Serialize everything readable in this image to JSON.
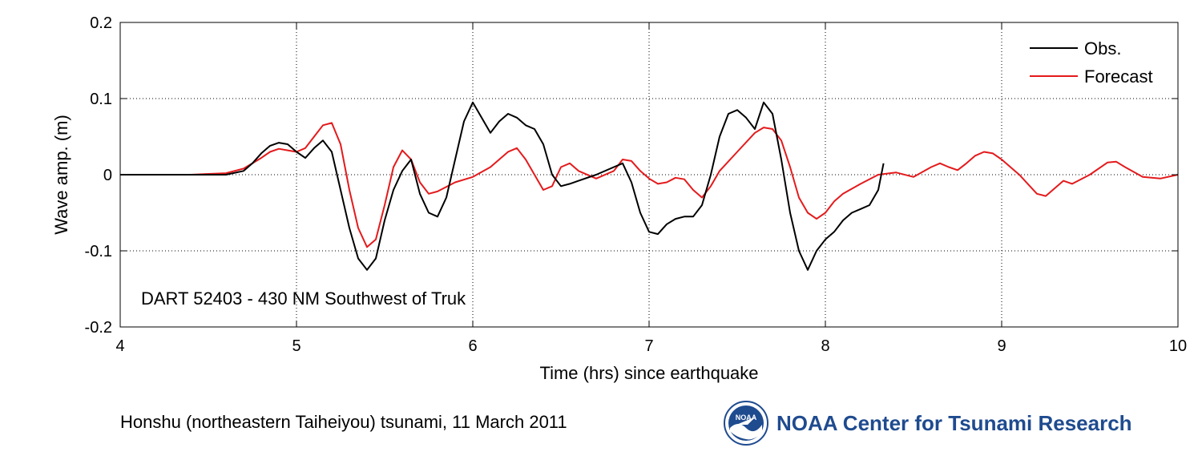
{
  "caption": "Honshu (northeastern Taiheiyou) tsunami, 11 March 2011",
  "org": {
    "name": "NOAA Center for Tsunami Research",
    "logo_text": "NOAA",
    "logo_icon": "noaa-logo-icon",
    "logo_color": "#1f4b8f"
  },
  "chart_data": {
    "type": "line",
    "xlabel": "Time (hrs) since earthquake",
    "ylabel": "Wave amp. (m)",
    "xlim": [
      4,
      10
    ],
    "ylim": [
      -0.2,
      0.2
    ],
    "xticks": [
      4,
      5,
      6,
      7,
      8,
      9,
      10
    ],
    "yticks": [
      -0.2,
      -0.1,
      0,
      0.1,
      0.2
    ],
    "xtick_labels": [
      "4",
      "5",
      "6",
      "7",
      "8",
      "9",
      "10"
    ],
    "ytick_labels": [
      "-0.2",
      "-0.1",
      "0",
      "0.1",
      "0.2"
    ],
    "grid": true,
    "legend_position": "top-right",
    "annotation": "DART 52403 - 430 NM Southwest of Truk",
    "series": [
      {
        "name": "Obs.",
        "color": "#000000",
        "x": [
          4.0,
          4.2,
          4.4,
          4.6,
          4.7,
          4.75,
          4.8,
          4.85,
          4.9,
          4.95,
          5.0,
          5.05,
          5.1,
          5.15,
          5.2,
          5.25,
          5.3,
          5.35,
          5.4,
          5.45,
          5.5,
          5.55,
          5.6,
          5.65,
          5.7,
          5.75,
          5.8,
          5.85,
          5.9,
          5.95,
          6.0,
          6.05,
          6.1,
          6.15,
          6.2,
          6.25,
          6.3,
          6.35,
          6.4,
          6.45,
          6.5,
          6.55,
          6.6,
          6.7,
          6.8,
          6.85,
          6.9,
          6.95,
          7.0,
          7.05,
          7.1,
          7.15,
          7.2,
          7.25,
          7.3,
          7.35,
          7.4,
          7.45,
          7.5,
          7.55,
          7.6,
          7.65,
          7.7,
          7.75,
          7.8,
          7.85,
          7.9,
          7.95,
          8.0,
          8.05,
          8.1,
          8.15,
          8.2,
          8.25,
          8.3,
          8.33
        ],
        "y": [
          0.0,
          0.0,
          0.0,
          0.0,
          0.005,
          0.015,
          0.028,
          0.038,
          0.042,
          0.04,
          0.03,
          0.022,
          0.035,
          0.045,
          0.03,
          -0.02,
          -0.07,
          -0.11,
          -0.125,
          -0.11,
          -0.06,
          -0.02,
          0.005,
          0.02,
          -0.025,
          -0.05,
          -0.055,
          -0.03,
          0.02,
          0.07,
          0.095,
          0.075,
          0.055,
          0.07,
          0.08,
          0.075,
          0.065,
          0.06,
          0.04,
          0.0,
          -0.015,
          -0.012,
          -0.008,
          0.0,
          0.01,
          0.015,
          -0.01,
          -0.05,
          -0.075,
          -0.078,
          -0.065,
          -0.058,
          -0.055,
          -0.055,
          -0.04,
          0.0,
          0.05,
          0.08,
          0.085,
          0.075,
          0.06,
          0.095,
          0.08,
          0.02,
          -0.05,
          -0.1,
          -0.125,
          -0.1,
          -0.085,
          -0.075,
          -0.06,
          -0.05,
          -0.045,
          -0.04,
          -0.02,
          0.015
        ]
      },
      {
        "name": "Forecast",
        "color": "#e41a1c",
        "x": [
          4.0,
          4.2,
          4.4,
          4.6,
          4.7,
          4.8,
          4.85,
          4.9,
          4.95,
          5.0,
          5.05,
          5.1,
          5.15,
          5.2,
          5.25,
          5.3,
          5.35,
          5.4,
          5.45,
          5.5,
          5.55,
          5.6,
          5.65,
          5.7,
          5.75,
          5.8,
          5.9,
          6.0,
          6.1,
          6.2,
          6.25,
          6.3,
          6.35,
          6.4,
          6.45,
          6.5,
          6.55,
          6.6,
          6.7,
          6.8,
          6.85,
          6.9,
          6.95,
          7.0,
          7.05,
          7.1,
          7.15,
          7.2,
          7.25,
          7.3,
          7.35,
          7.4,
          7.5,
          7.6,
          7.65,
          7.7,
          7.75,
          7.8,
          7.85,
          7.9,
          7.95,
          8.0,
          8.05,
          8.1,
          8.2,
          8.3,
          8.4,
          8.5,
          8.6,
          8.65,
          8.7,
          8.75,
          8.8,
          8.85,
          8.9,
          8.95,
          9.0,
          9.1,
          9.2,
          9.25,
          9.3,
          9.35,
          9.4,
          9.5,
          9.6,
          9.65,
          9.7,
          9.8,
          9.9,
          10.0
        ],
        "y": [
          0.0,
          0.0,
          0.0,
          0.002,
          0.008,
          0.022,
          0.03,
          0.034,
          0.032,
          0.03,
          0.035,
          0.05,
          0.065,
          0.068,
          0.04,
          -0.02,
          -0.07,
          -0.095,
          -0.085,
          -0.04,
          0.01,
          0.032,
          0.02,
          -0.01,
          -0.025,
          -0.022,
          -0.01,
          -0.003,
          0.01,
          0.03,
          0.035,
          0.02,
          0.0,
          -0.02,
          -0.015,
          0.01,
          0.015,
          0.005,
          -0.005,
          0.005,
          0.02,
          0.018,
          0.005,
          -0.005,
          -0.012,
          -0.01,
          -0.004,
          -0.006,
          -0.02,
          -0.03,
          -0.015,
          0.005,
          0.03,
          0.055,
          0.062,
          0.06,
          0.045,
          0.01,
          -0.03,
          -0.05,
          -0.058,
          -0.05,
          -0.035,
          -0.025,
          -0.012,
          0.0,
          0.003,
          -0.003,
          0.01,
          0.015,
          0.01,
          0.006,
          0.015,
          0.025,
          0.03,
          0.028,
          0.02,
          0.0,
          -0.025,
          -0.028,
          -0.018,
          -0.008,
          -0.012,
          0.0,
          0.016,
          0.017,
          0.01,
          -0.003,
          -0.005,
          0.0
        ]
      }
    ]
  }
}
